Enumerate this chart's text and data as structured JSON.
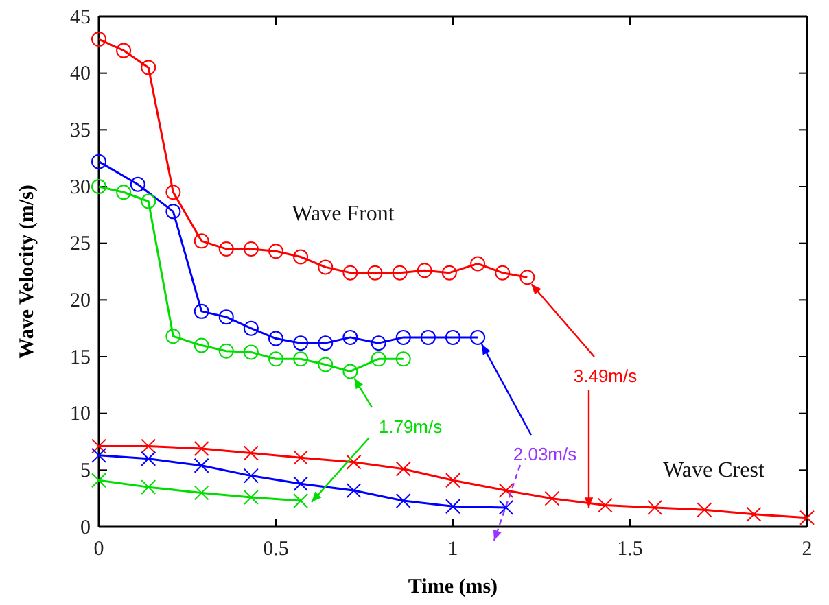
{
  "chart_data": {
    "type": "line",
    "xlabel": "Time (ms)",
    "ylabel": "Wave Velocity (m/s)",
    "xlim": [
      0,
      2
    ],
    "ylim": [
      0,
      45
    ],
    "xticks": [
      0,
      0.5,
      1,
      1.5,
      2
    ],
    "yticks": [
      0,
      5,
      10,
      15,
      20,
      25,
      30,
      35,
      40,
      45
    ],
    "grid": false,
    "series": [
      {
        "color": "#ff0000",
        "marker": "circle",
        "x": [
          0,
          0.07,
          0.14,
          0.21,
          0.29,
          0.36,
          0.43,
          0.5,
          0.57,
          0.64,
          0.71,
          0.78,
          0.85,
          0.92,
          0.99,
          1.07,
          1.14,
          1.21
        ],
        "values": [
          43,
          42,
          40.5,
          29.5,
          25.2,
          24.5,
          24.5,
          24.3,
          23.8,
          22.9,
          22.4,
          22.4,
          22.4,
          22.6,
          22.4,
          23.2,
          22.4,
          22.0
        ]
      },
      {
        "color": "#0000ff",
        "marker": "circle",
        "x": [
          0,
          0.11,
          0.21,
          0.29,
          0.36,
          0.43,
          0.5,
          0.57,
          0.64,
          0.71,
          0.79,
          0.86,
          0.93,
          1.0,
          1.07
        ],
        "values": [
          32.2,
          30.2,
          27.8,
          19,
          18.5,
          17.5,
          16.6,
          16.2,
          16.2,
          16.7,
          16.2,
          16.7,
          16.7,
          16.7,
          16.7
        ]
      },
      {
        "color": "#00dd00",
        "marker": "circle",
        "x": [
          0,
          0.07,
          0.14,
          0.21,
          0.29,
          0.36,
          0.43,
          0.5,
          0.57,
          0.64,
          0.71,
          0.79,
          0.86
        ],
        "values": [
          30,
          29.5,
          28.7,
          16.8,
          16,
          15.5,
          15.4,
          14.8,
          14.8,
          14.3,
          13.7,
          14.8,
          14.8
        ]
      },
      {
        "color": "#ff0000",
        "marker": "cross",
        "x": [
          0,
          0.14,
          0.29,
          0.43,
          0.57,
          0.72,
          0.86,
          1.0,
          1.15,
          1.28,
          1.43,
          1.57,
          1.71,
          1.85,
          2.0
        ],
        "values": [
          7.1,
          7.1,
          6.9,
          6.5,
          6.1,
          5.7,
          5.1,
          4.1,
          3.2,
          2.5,
          1.9,
          1.7,
          1.5,
          1.1,
          0.8
        ]
      },
      {
        "color": "#0000ff",
        "marker": "cross",
        "x": [
          0,
          0.14,
          0.29,
          0.43,
          0.57,
          0.72,
          0.86,
          1.0,
          1.15
        ],
        "values": [
          6.3,
          6.0,
          5.4,
          4.5,
          3.8,
          3.2,
          2.3,
          1.8,
          1.7
        ]
      },
      {
        "color": "#00dd00",
        "marker": "cross",
        "x": [
          0,
          0.14,
          0.29,
          0.43,
          0.57
        ],
        "values": [
          4.1,
          3.5,
          3.0,
          2.6,
          2.3
        ]
      }
    ],
    "annotations": [
      "Wave Front",
      "Wave Crest",
      {
        "text": "3.49m/s",
        "x": 1.21,
        "y": 22.0
      },
      {
        "text": "1.79m/s",
        "x": 0.71,
        "y": 13.7
      },
      {
        "text": "2.03m/s",
        "x": 1.07,
        "y": 16.7
      }
    ]
  }
}
